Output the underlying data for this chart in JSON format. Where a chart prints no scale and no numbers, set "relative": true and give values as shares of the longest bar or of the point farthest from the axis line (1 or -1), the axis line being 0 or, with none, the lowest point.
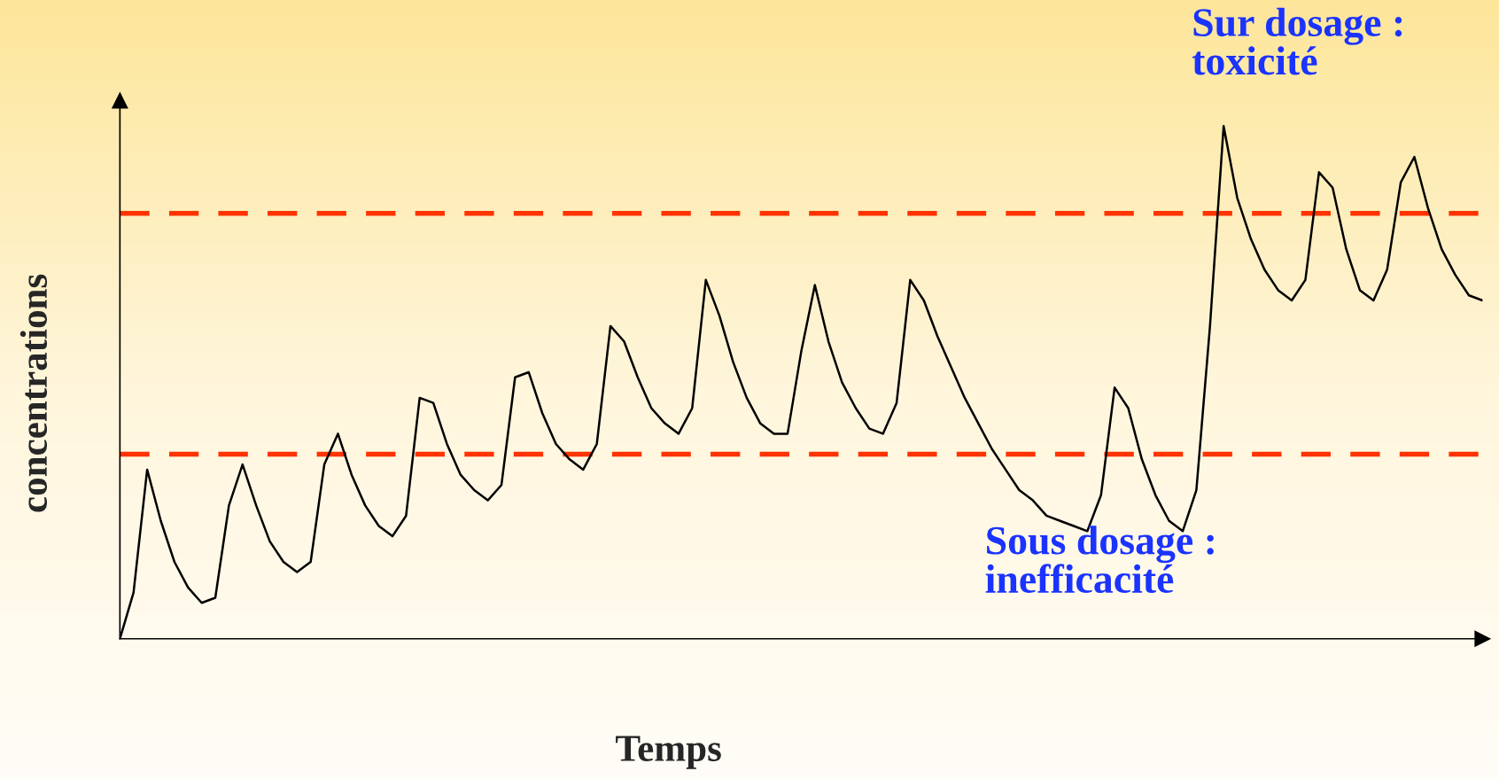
{
  "chart_data": {
    "type": "line",
    "relative": true,
    "xlabel": "Temps",
    "ylabel": "concentrations",
    "categories": [
      null,
      null,
      null,
      null,
      null,
      null,
      null,
      null,
      null,
      null,
      null,
      null,
      null,
      null,
      null,
      null,
      null,
      null,
      null,
      null,
      null,
      null,
      null,
      null,
      null,
      null,
      null,
      null,
      null,
      null,
      null,
      null,
      null,
      null,
      null,
      null,
      null,
      null,
      null,
      null,
      null,
      null,
      null,
      null,
      null,
      null,
      null,
      null,
      null,
      null,
      null,
      null,
      null,
      null,
      null,
      null,
      null,
      null,
      null,
      null,
      null,
      null,
      null,
      null,
      null,
      null,
      null,
      null,
      null,
      null,
      null,
      null,
      null,
      null,
      null,
      null,
      null,
      null,
      null,
      null,
      null,
      null,
      null,
      null,
      null,
      null,
      null,
      null,
      null,
      null,
      null,
      null,
      null,
      null,
      null,
      null,
      null,
      null,
      null,
      null,
      null
    ],
    "series": [
      {
        "color": "#000000",
        "values": [
          0,
          0.09,
          0.33,
          0.23,
          0.15,
          0.1,
          0.07,
          0.08,
          0.26,
          0.34,
          0.26,
          0.19,
          0.15,
          0.13,
          0.15,
          0.34,
          0.4,
          0.32,
          0.26,
          0.22,
          0.2,
          0.24,
          0.47,
          0.46,
          0.38,
          0.32,
          0.29,
          0.27,
          0.3,
          0.51,
          0.52,
          0.44,
          0.38,
          0.35,
          0.33,
          0.38,
          0.61,
          0.58,
          0.51,
          0.45,
          0.42,
          0.4,
          0.45,
          0.7,
          0.63,
          0.54,
          0.47,
          0.42,
          0.4,
          0.4,
          0.56,
          0.69,
          0.58,
          0.5,
          0.45,
          0.41,
          0.4,
          0.46,
          0.7,
          0.66,
          0.59,
          0.53,
          0.47,
          0.42,
          0.37,
          0.33,
          0.29,
          0.27,
          0.24,
          0.23,
          0.22,
          0.21,
          0.28,
          0.49,
          0.45,
          0.35,
          0.28,
          0.23,
          0.21,
          0.29,
          0.61,
          1.0,
          0.86,
          0.78,
          0.72,
          0.68,
          0.66,
          0.7,
          0.91,
          0.88,
          0.76,
          0.68,
          0.66,
          0.72,
          0.89,
          0.94,
          0.84,
          0.76,
          0.71,
          0.67,
          0.66
        ]
      }
    ],
    "ref_lines": [
      {
        "axis": "y",
        "value": 0.83,
        "color": "#ff3300",
        "line_style": "dashed"
      },
      {
        "axis": "y",
        "value": 0.36,
        "color": "#ff3300",
        "line_style": "dashed"
      }
    ],
    "annotations": [
      "Sur dosage :\ntoxicité",
      "Sous dosage :\ninefficacité"
    ],
    "legend": false,
    "marker": "none",
    "line_style": "solid"
  }
}
